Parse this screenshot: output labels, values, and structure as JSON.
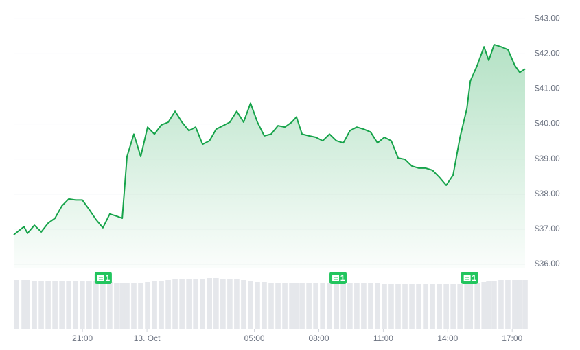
{
  "chart_data": {
    "type": "line",
    "x": [
      -6.2,
      -5.72,
      -5.56,
      -5.24,
      -4.92,
      -4.6,
      -4.28,
      -3.96,
      -3.64,
      -3.32,
      -3.01,
      -2.69,
      -2.37,
      -2.05,
      -1.73,
      -1.41,
      -1.15,
      -0.93,
      -0.61,
      -0.29,
      0.03,
      0.35,
      0.67,
      0.99,
      1.31,
      1.63,
      1.95,
      2.27,
      2.59,
      2.91,
      3.22,
      3.54,
      3.86,
      4.18,
      4.5,
      4.82,
      5.14,
      5.46,
      5.78,
      6.1,
      6.42,
      6.74,
      6.96,
      7.22,
      7.54,
      7.86,
      8.18,
      8.5,
      8.82,
      9.14,
      9.45,
      9.77,
      10.09,
      10.41,
      10.73,
      11.05,
      11.37,
      11.69,
      12.01,
      12.33,
      12.65,
      12.97,
      13.29,
      13.61,
      13.93,
      14.25,
      14.57,
      14.89,
      15.05,
      15.37,
      15.69,
      15.91,
      16.16,
      16.48,
      16.8,
      17.12,
      17.35,
      17.6
    ],
    "series": [
      {
        "name": "Price",
        "color": "#16a34a",
        "values": [
          36.84,
          37.07,
          36.88,
          37.11,
          36.92,
          37.17,
          37.31,
          37.66,
          37.86,
          37.83,
          37.83,
          37.56,
          37.27,
          37.04,
          37.43,
          37.37,
          37.31,
          39.07,
          39.71,
          39.07,
          39.91,
          39.71,
          39.97,
          40.05,
          40.36,
          40.05,
          39.81,
          39.91,
          39.42,
          39.52,
          39.85,
          39.95,
          40.05,
          40.36,
          40.05,
          40.59,
          40.05,
          39.66,
          39.71,
          39.95,
          39.91,
          40.05,
          40.2,
          39.71,
          39.66,
          39.62,
          39.52,
          39.71,
          39.52,
          39.46,
          39.81,
          39.91,
          39.85,
          39.77,
          39.46,
          39.62,
          39.52,
          39.03,
          38.99,
          38.8,
          38.74,
          38.74,
          38.68,
          38.48,
          38.25,
          38.54,
          39.62,
          40.44,
          41.22,
          41.67,
          42.2,
          41.81,
          42.26,
          42.2,
          42.12,
          41.67,
          41.47,
          41.57
        ]
      },
      {
        "name": "Volume",
        "color": "#e5e7eb",
        "axis": "y2",
        "values": [
          72,
          72,
          72,
          71,
          71,
          71,
          71,
          71,
          70,
          70,
          70,
          70,
          70,
          69,
          69,
          68,
          67,
          67,
          67,
          68,
          69,
          70,
          71,
          72,
          73,
          73,
          74,
          74,
          74,
          75,
          75,
          74,
          74,
          73,
          72,
          70,
          69,
          69,
          68,
          68,
          68,
          68,
          68,
          68,
          67,
          67,
          67,
          67,
          67,
          67,
          67,
          67,
          67,
          67,
          67,
          66,
          66,
          66,
          66,
          66,
          66,
          66,
          66,
          66,
          66,
          66,
          66,
          67,
          68,
          68,
          69,
          70,
          71,
          72,
          72,
          72,
          72,
          72
        ]
      }
    ],
    "xlim": [
      -6.2,
      17.6
    ],
    "xticks": [
      {
        "value": -3,
        "label": "21:00"
      },
      {
        "value": 0,
        "label": "13. Oct"
      },
      {
        "value": 5,
        "label": "05:00"
      },
      {
        "value": 8,
        "label": "08:00"
      },
      {
        "value": 11,
        "label": "11:00"
      },
      {
        "value": 14,
        "label": "14:00"
      },
      {
        "value": 17,
        "label": "17:00"
      }
    ],
    "ylim": [
      35.9,
      43.3
    ],
    "yticks": [
      {
        "value": 36,
        "label": "$36.00"
      },
      {
        "value": 37,
        "label": "$37.00"
      },
      {
        "value": 38,
        "label": "$38.00"
      },
      {
        "value": 39,
        "label": "$39.00"
      },
      {
        "value": 40,
        "label": "$40.00"
      },
      {
        "value": 41,
        "label": "$41.00"
      },
      {
        "value": 42,
        "label": "$42.00"
      },
      {
        "value": 43,
        "label": "$43.00"
      }
    ],
    "y2lim": [
      0,
      100
    ],
    "grid": true,
    "annotations": [
      {
        "x": -2.05,
        "label": "1"
      },
      {
        "x": 8.88,
        "label": "1"
      },
      {
        "x": 15.0,
        "label": "1"
      }
    ]
  }
}
